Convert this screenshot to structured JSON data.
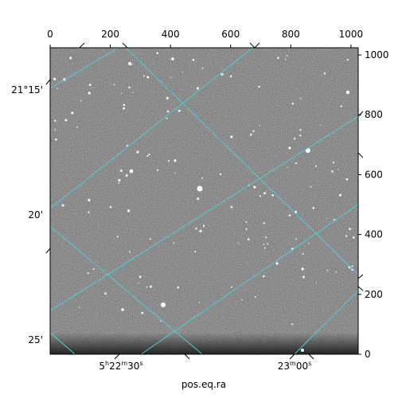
{
  "chart_data": {
    "type": "image",
    "xlabel": "pos.eq.ra",
    "top_axis": {
      "ticks": [
        0,
        200,
        400,
        600,
        800,
        1000
      ],
      "range": [
        0,
        1024
      ]
    },
    "right_axis": {
      "ticks": [
        0,
        200,
        400,
        600,
        800,
        1000
      ],
      "range": [
        0,
        1024
      ]
    },
    "ra_ticks": [
      {
        "hours": "5",
        "minutes": "22",
        "seconds": "30",
        "label_form": "full"
      },
      {
        "minutes": "23",
        "seconds": "00",
        "label_form": "short"
      }
    ],
    "dec_ticks": [
      "21°15'",
      "20'",
      "25'"
    ],
    "grid": true,
    "grid_color": "#4fd5d5",
    "image_style": "grayscale star field"
  }
}
